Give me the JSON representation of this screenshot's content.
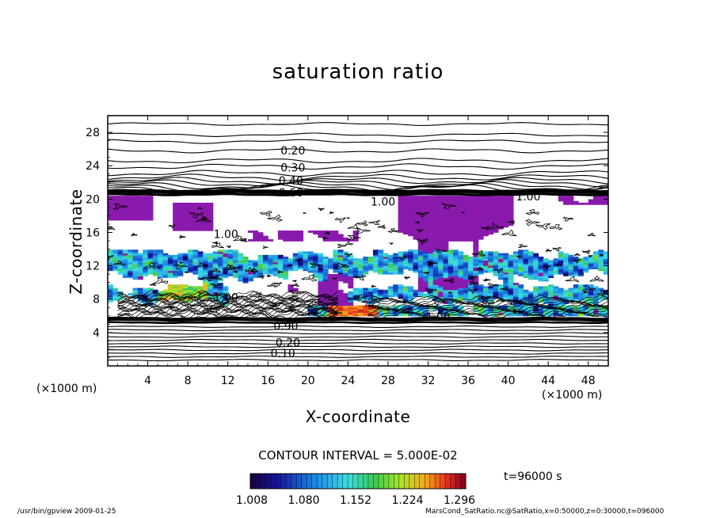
{
  "chart_data": {
    "type": "heatmap",
    "title": "saturation ratio",
    "xlabel": "X-coordinate",
    "ylabel": "Z-coordinate",
    "x_unit": "(×1000 m)",
    "y_unit": "(×1000 m)",
    "xlim": [
      0,
      50
    ],
    "ylim": [
      0,
      30
    ],
    "x_ticks": [
      4,
      8,
      12,
      16,
      20,
      24,
      28,
      32,
      36,
      40,
      44,
      48
    ],
    "y_ticks": [
      4,
      8,
      12,
      16,
      20,
      24,
      28
    ],
    "contour_interval_text": "CONTOUR INTERVAL = 5.000E-02",
    "contour_labels": [
      {
        "text": "0.20",
        "x": 18.5,
        "y": 25.8
      },
      {
        "text": "0.30",
        "x": 18.5,
        "y": 23.8
      },
      {
        "text": "0.40",
        "x": 18.3,
        "y": 22.2
      },
      {
        "text": "0.60",
        "x": 18.3,
        "y": 20.8
      },
      {
        "text": "1.00",
        "x": 27.5,
        "y": 19.7
      },
      {
        "text": "1.00",
        "x": 42.0,
        "y": 20.3
      },
      {
        "text": "1.00",
        "x": 11.8,
        "y": 15.8
      },
      {
        "text": "1.00",
        "x": 11.8,
        "y": 8.2
      },
      {
        "text": "1.00",
        "x": 33.0,
        "y": 5.9
      },
      {
        "text": "0.90",
        "x": 17.8,
        "y": 4.8
      },
      {
        "text": "0.20",
        "x": 18.0,
        "y": 2.8
      },
      {
        "text": "0.10",
        "x": 17.5,
        "y": 1.5
      }
    ],
    "colorbar": {
      "min": 1.008,
      "max": 1.296,
      "tick_labels": [
        "1.008",
        "1.080",
        "1.152",
        "1.224",
        "1.296"
      ]
    },
    "time_label": "t=96000 s",
    "colors": {
      "supersaturated_fill": "#8a1aad",
      "contour": "#000000"
    }
  },
  "footer": {
    "left": "/usr/bin/gpview   2009-01-25",
    "right": "MarsCond_SatRatio.nc@SatRatio,x=0:50000,z=0:30000,t=096000"
  }
}
